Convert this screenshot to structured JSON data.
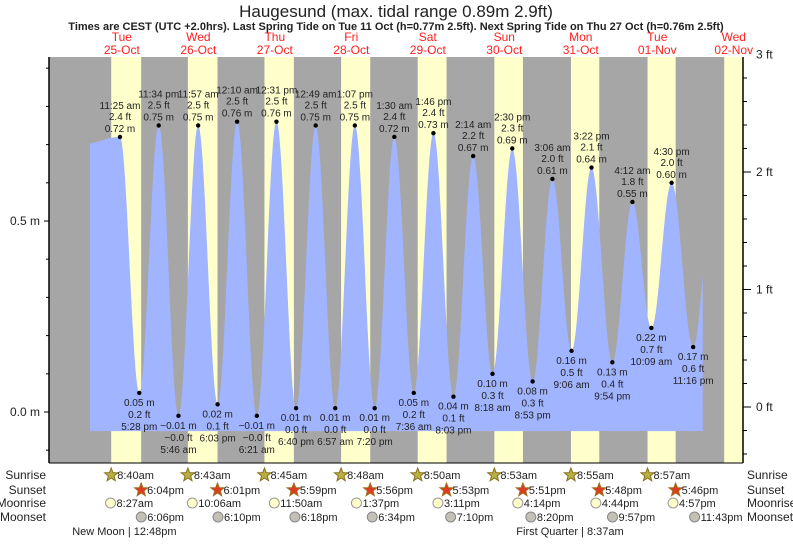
{
  "title": "Haugesund (max. tidal range 0.89m 2.9ft)",
  "subtitle": "Times are CEST (UTC +2.0hrs). Last Spring Tide on Tue 11 Oct (h=0.77m 2.5ft). Next Spring Tide on Thu 27 Oct (h=0.76m 2.5ft)",
  "colors": {
    "night": "#a6a6a6",
    "day": "#ffffcc",
    "water": "#a0b4ff",
    "day_label": "#ff2020"
  },
  "chart_data": {
    "type": "area",
    "title": "Haugesund (max. tidal range 0.89m 2.9ft)",
    "y_left": {
      "unit": "m",
      "ticks": [
        "0.0 m",
        "0.5 m"
      ],
      "range": [
        -0.13,
        0.92
      ]
    },
    "y_right": {
      "unit": "ft",
      "ticks": [
        "0 ft",
        "1 ft",
        "2 ft",
        "3 ft"
      ]
    },
    "days": [
      {
        "weekday": "Tue",
        "date": "25-Oct"
      },
      {
        "weekday": "Wed",
        "date": "26-Oct"
      },
      {
        "weekday": "Thu",
        "date": "27-Oct"
      },
      {
        "weekday": "Fri",
        "date": "28-Oct"
      },
      {
        "weekday": "Sat",
        "date": "29-Oct"
      },
      {
        "weekday": "Sun",
        "date": "30-Oct"
      },
      {
        "weekday": "Mon",
        "date": "31-Oct"
      },
      {
        "weekday": "Tue",
        "date": "01-Nov"
      },
      {
        "weekday": "Wed",
        "date": "02-Nov"
      }
    ],
    "tides": [
      {
        "day": 0,
        "time": "11:25 am",
        "type": "high",
        "m": "0.72 m",
        "ft": "2.4 ft",
        "h": 0.72
      },
      {
        "day": 0,
        "time": "5:28 pm",
        "type": "low",
        "m": "0.05 m",
        "ft": "0.2 ft",
        "h": 0.05
      },
      {
        "day": 0,
        "time": "11:34 pm",
        "type": "high",
        "m": "0.75 m",
        "ft": "2.5 ft",
        "h": 0.75
      },
      {
        "day": 1,
        "time": "5:46 am",
        "type": "low",
        "m": "−0.01 m",
        "ft": "−0.0 ft",
        "h": -0.01
      },
      {
        "day": 1,
        "time": "11:57 am",
        "type": "high",
        "m": "0.75 m",
        "ft": "2.5 ft",
        "h": 0.75
      },
      {
        "day": 1,
        "time": "6:03 pm",
        "type": "low",
        "m": "0.02 m",
        "ft": "0.1 ft",
        "h": 0.02
      },
      {
        "day": 2,
        "time": "12:10 am",
        "type": "high",
        "m": "0.76 m",
        "ft": "2.5 ft",
        "h": 0.76
      },
      {
        "day": 2,
        "time": "6:21 am",
        "type": "low",
        "m": "−0.01 m",
        "ft": "−0.0 ft",
        "h": -0.01
      },
      {
        "day": 2,
        "time": "12:31 pm",
        "type": "high",
        "m": "0.76 m",
        "ft": "2.5 ft",
        "h": 0.76
      },
      {
        "day": 2,
        "time": "6:40 pm",
        "type": "low",
        "m": "0.01 m",
        "ft": "0.0 ft",
        "h": 0.01
      },
      {
        "day": 3,
        "time": "12:49 am",
        "type": "high",
        "m": "0.75 m",
        "ft": "2.5 ft",
        "h": 0.75
      },
      {
        "day": 3,
        "time": "6:57 am",
        "type": "low",
        "m": "0.01 m",
        "ft": "0.0 ft",
        "h": 0.01
      },
      {
        "day": 3,
        "time": "1:07 pm",
        "type": "high",
        "m": "0.75 m",
        "ft": "2.5 ft",
        "h": 0.75
      },
      {
        "day": 3,
        "time": "7:20 pm",
        "type": "low",
        "m": "0.01 m",
        "ft": "0.0 ft",
        "h": 0.01
      },
      {
        "day": 4,
        "time": "1:30 am",
        "type": "high",
        "m": "0.72 m",
        "ft": "2.4 ft",
        "h": 0.72
      },
      {
        "day": 4,
        "time": "7:36 am",
        "type": "low",
        "m": "0.05 m",
        "ft": "0.2 ft",
        "h": 0.05
      },
      {
        "day": 4,
        "time": "1:46 pm",
        "type": "high",
        "m": "0.73 m",
        "ft": "2.4 ft",
        "h": 0.73
      },
      {
        "day": 4,
        "time": "8:03 pm",
        "type": "low",
        "m": "0.04 m",
        "ft": "0.1 ft",
        "h": 0.04
      },
      {
        "day": 5,
        "time": "2:14 am",
        "type": "high",
        "m": "0.67 m",
        "ft": "2.2 ft",
        "h": 0.67
      },
      {
        "day": 5,
        "time": "8:18 am",
        "type": "low",
        "m": "0.10 m",
        "ft": "0.3 ft",
        "h": 0.1
      },
      {
        "day": 5,
        "time": "2:30 pm",
        "type": "high",
        "m": "0.69 m",
        "ft": "2.3 ft",
        "h": 0.69
      },
      {
        "day": 5,
        "time": "8:53 pm",
        "type": "low",
        "m": "0.08 m",
        "ft": "0.3 ft",
        "h": 0.08
      },
      {
        "day": 6,
        "time": "3:06 am",
        "type": "high",
        "m": "0.61 m",
        "ft": "2.0 ft",
        "h": 0.61
      },
      {
        "day": 6,
        "time": "9:06 am",
        "type": "low",
        "m": "0.16 m",
        "ft": "0.5 ft",
        "h": 0.16
      },
      {
        "day": 6,
        "time": "3:22 pm",
        "type": "high",
        "m": "0.64 m",
        "ft": "2.1 ft",
        "h": 0.64
      },
      {
        "day": 6,
        "time": "9:54 pm",
        "type": "low",
        "m": "0.13 m",
        "ft": "0.4 ft",
        "h": 0.13
      },
      {
        "day": 7,
        "time": "4:12 am",
        "type": "high",
        "m": "0.55 m",
        "ft": "1.8 ft",
        "h": 0.55
      },
      {
        "day": 7,
        "time": "10:09 am",
        "type": "low",
        "m": "0.22 m",
        "ft": "0.7 ft",
        "h": 0.22
      },
      {
        "day": 7,
        "time": "4:30 pm",
        "type": "high",
        "m": "0.60 m",
        "ft": "2.0 ft",
        "h": 0.6
      },
      {
        "day": 7,
        "time": "11:16 pm",
        "type": "low",
        "m": "0.17 m",
        "ft": "0.6 ft",
        "h": 0.17
      }
    ]
  },
  "rows": {
    "labels": [
      "Sunrise",
      "Sunset",
      "Moonrise",
      "Moonset"
    ],
    "sunrise": [
      "8:40am",
      "8:43am",
      "8:45am",
      "8:48am",
      "8:50am",
      "8:53am",
      "8:55am",
      "8:57am"
    ],
    "sunset": [
      "6:04pm",
      "6:01pm",
      "5:59pm",
      "5:56pm",
      "5:53pm",
      "5:51pm",
      "5:48pm",
      "5:46pm"
    ],
    "moonrise": [
      "8:27am",
      "10:06am",
      "11:50am",
      "1:37pm",
      "3:11pm",
      "4:14pm",
      "4:44pm",
      "4:57pm"
    ],
    "moonset": [
      "6:06pm",
      "6:10pm",
      "6:18pm",
      "6:34pm",
      "7:10pm",
      "8:20pm",
      "9:57pm",
      "11:43pm"
    ]
  },
  "moon_phases": [
    {
      "day": 0,
      "time": "12:48pm",
      "label": "New Moon | 12:48pm"
    },
    {
      "day": 6,
      "time": "8:37am",
      "label": "First Quarter | 8:37am"
    }
  ]
}
